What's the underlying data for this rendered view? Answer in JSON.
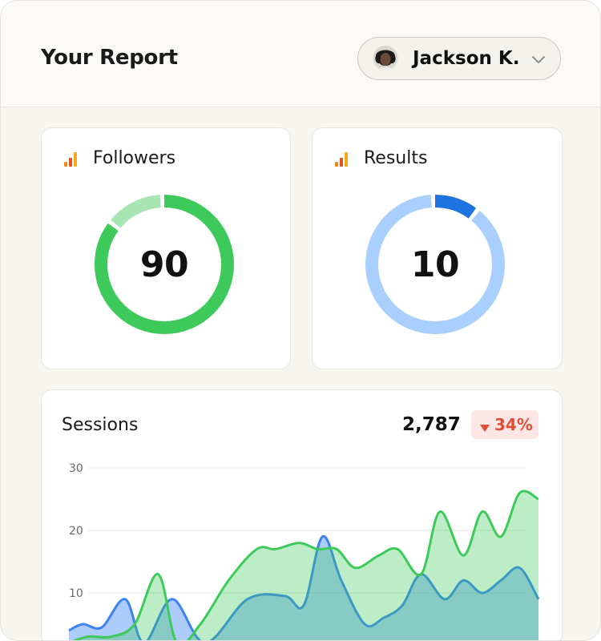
{
  "header": {
    "title": "Your Report",
    "user": {
      "name": "Jackson K."
    }
  },
  "cards": [
    {
      "label": "Followers",
      "value": "90",
      "percent": 85,
      "primary": "#3ec95b",
      "secondary": "#a7e5b3"
    },
    {
      "label": "Results",
      "value": "10",
      "percent": 10,
      "primary": "#1e74df",
      "secondary": "#a9cfff"
    }
  ],
  "sessions": {
    "label": "Sessions",
    "total": "2,787",
    "delta": "34%",
    "delta_color": "#e04e3a"
  },
  "chart_data": {
    "type": "area",
    "tick_labels": [
      "30",
      "20",
      "10"
    ],
    "ylim": [
      0,
      30
    ],
    "series": [
      {
        "color": "#3b82f6",
        "x": [
          0,
          3,
          7,
          12,
          16,
          22,
          29,
          38,
          46,
          50,
          54,
          58,
          63,
          67,
          71,
          75,
          80,
          84,
          88,
          92,
          96,
          100
        ],
        "y": [
          4,
          5,
          4.5,
          9,
          2,
          9,
          2,
          9,
          9.5,
          8,
          19,
          12,
          5,
          6,
          8,
          13,
          9,
          12,
          10,
          12,
          14,
          9
        ]
      },
      {
        "color": "#3ec95b",
        "x": [
          0,
          4,
          9,
          14,
          19,
          23,
          28,
          34,
          40,
          44,
          49,
          53,
          57,
          61,
          66,
          70,
          75,
          79,
          84,
          88,
          92,
          96,
          100
        ],
        "y": [
          2,
          3,
          3,
          5,
          13,
          2,
          5,
          12,
          17,
          17,
          18,
          17,
          17,
          14,
          16,
          17,
          13,
          23,
          16,
          23,
          19,
          26,
          25
        ]
      }
    ]
  }
}
